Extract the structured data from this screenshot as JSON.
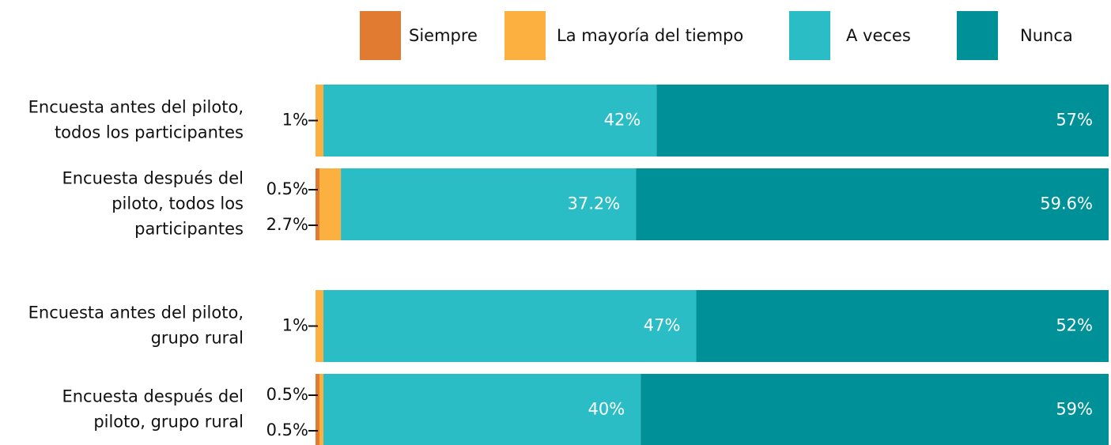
{
  "chart_data": {
    "type": "stacked-bar-horizontal",
    "categories": [
      "Encuesta antes del piloto,\ntodos los participantes",
      "Encuesta después del\npiloto, todos los\nparticipantes",
      "Encuesta antes del piloto,\ngrupo rural",
      "Encuesta después del\npiloto, grupo rural"
    ],
    "xlim": [
      0,
      100
    ],
    "legend": "top",
    "series": [
      {
        "name": "Siempre",
        "color": "#e07b31",
        "values": [
          0,
          0.5,
          0,
          0.5
        ],
        "value_labels": [
          null,
          "0.5%",
          null,
          "0.5%"
        ]
      },
      {
        "name": "La mayoría del tiempo",
        "color": "#fbb040",
        "values": [
          1,
          2.7,
          1,
          0.5
        ],
        "value_labels": [
          "1%",
          "2.7%",
          "1%",
          "0.5%"
        ]
      },
      {
        "name": "A veces",
        "color": "#2bbdc6",
        "values": [
          42,
          37.2,
          47,
          40
        ],
        "value_labels": [
          "42%",
          "37.2%",
          "47%",
          "40%"
        ]
      },
      {
        "name": "Nunca",
        "color": "#009097",
        "values": [
          57,
          59.6,
          52,
          59
        ],
        "value_labels": [
          "57%",
          "59.6%",
          "52%",
          "59%"
        ]
      }
    ]
  }
}
